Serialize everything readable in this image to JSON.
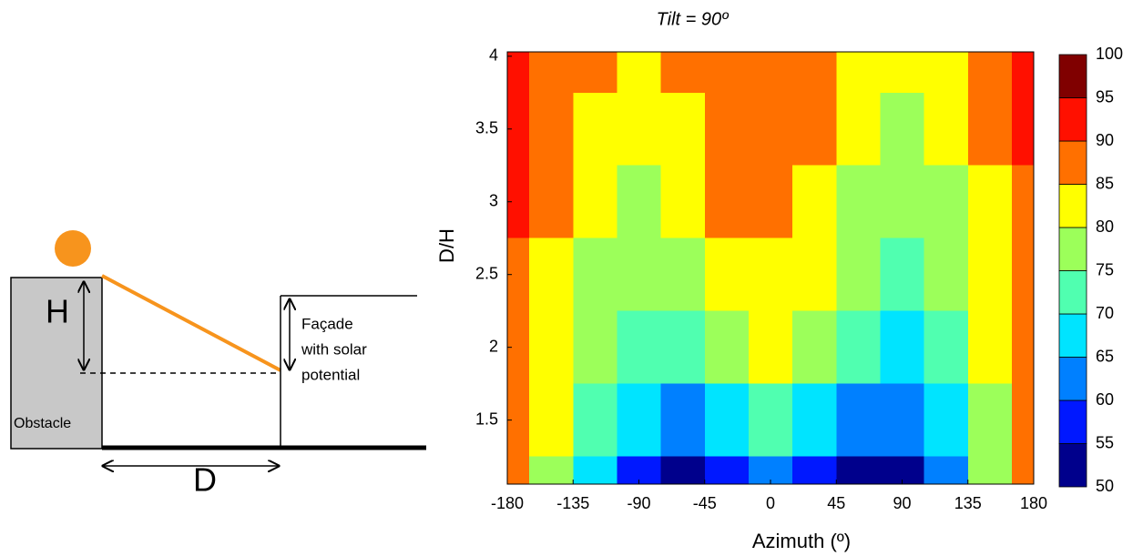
{
  "diagram": {
    "height_label": "H",
    "distance_label": "D",
    "obstacle_label": "Obstacle",
    "facade_label": [
      "Façade",
      "with solar",
      "potential"
    ]
  },
  "chart_data": {
    "type": "heatmap",
    "title": "Tilt = 90º",
    "x_label": "Azimuth (º)",
    "y_label": "D/H",
    "x": [
      -180,
      -150,
      -120,
      -90,
      -60,
      -30,
      0,
      30,
      60,
      90,
      120,
      150,
      180
    ],
    "y": [
      1,
      1.5,
      2,
      2.5,
      3,
      3.5,
      4
    ],
    "z": [
      [
        85,
        79,
        69,
        56,
        51,
        58,
        60,
        56,
        52,
        51,
        63,
        76,
        85
      ],
      [
        87,
        81,
        73,
        65,
        64,
        68,
        71,
        68,
        63,
        61,
        69,
        78,
        86
      ],
      [
        88,
        83,
        77,
        71,
        71,
        75,
        80,
        77,
        71,
        69,
        73,
        81,
        87
      ],
      [
        89,
        84,
        79,
        76,
        77,
        82,
        84,
        81,
        76,
        74,
        77,
        84,
        88
      ],
      [
        90,
        86,
        82,
        79,
        81,
        85,
        87,
        84,
        79,
        77,
        79,
        84,
        89
      ],
      [
        90,
        87,
        84,
        81,
        83,
        86,
        88,
        85,
        81,
        79,
        80,
        85,
        90
      ],
      [
        93,
        88,
        86,
        84,
        86,
        87,
        88,
        87,
        83,
        80,
        82,
        86,
        91
      ]
    ],
    "xlim": [
      -180,
      180
    ],
    "ylim": [
      1.06,
      4.03
    ],
    "xticks": [
      -180,
      -135,
      -90,
      -45,
      0,
      45,
      90,
      135,
      180
    ],
    "yticks": [
      1.5,
      2,
      2.5,
      3,
      3.5,
      4
    ],
    "levels": [
      50,
      55,
      60,
      65,
      70,
      75,
      80,
      85,
      90,
      95,
      100
    ],
    "colors": [
      "#00008c",
      "#0018ff",
      "#0080ff",
      "#00e4ff",
      "#50ffb0",
      "#9cff5a",
      "#ffff00",
      "#ff7000",
      "#ff1000",
      "#800000"
    ],
    "clim": [
      50,
      100
    ]
  }
}
